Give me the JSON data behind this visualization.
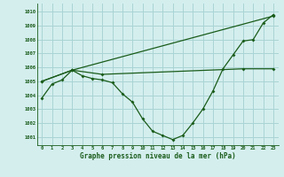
{
  "background_color": "#d4eeee",
  "grid_color": "#aad4d4",
  "line_color": "#1a5c1a",
  "xlabel": "Graphe pression niveau de la mer (hPa)",
  "ylim": [
    1000.4,
    1010.6
  ],
  "xlim": [
    -0.5,
    23.5
  ],
  "yticks": [
    1001,
    1002,
    1003,
    1004,
    1005,
    1006,
    1007,
    1008,
    1009,
    1010
  ],
  "xticks": [
    0,
    1,
    2,
    3,
    4,
    5,
    6,
    7,
    8,
    9,
    10,
    11,
    12,
    13,
    14,
    15,
    16,
    17,
    18,
    19,
    20,
    21,
    22,
    23
  ],
  "series": [
    {
      "x": [
        0,
        3,
        6,
        20,
        23
      ],
      "y": [
        1005.0,
        1005.8,
        1005.5,
        1005.9,
        1005.9
      ]
    },
    {
      "comment": "Line 2: straight line from (0,1005) to (3,1005.8) to (23,1009.7)",
      "x": [
        0,
        3,
        23
      ],
      "y": [
        1005.0,
        1005.8,
        1009.7
      ]
    },
    {
      "x": [
        0,
        1,
        2,
        3,
        4,
        5,
        6,
        7,
        8,
        9,
        10,
        11,
        12,
        13,
        14,
        15,
        16,
        17,
        18,
        19,
        20,
        21,
        22,
        23
      ],
      "y": [
        1003.8,
        1004.8,
        1005.1,
        1005.8,
        1005.4,
        1005.2,
        1005.1,
        1004.9,
        1004.1,
        1003.5,
        1002.3,
        1001.4,
        1001.1,
        1000.8,
        1001.1,
        1002.0,
        1003.0,
        1004.3,
        1005.9,
        1006.9,
        1007.9,
        1008.0,
        1009.2,
        1009.8
      ]
    }
  ]
}
